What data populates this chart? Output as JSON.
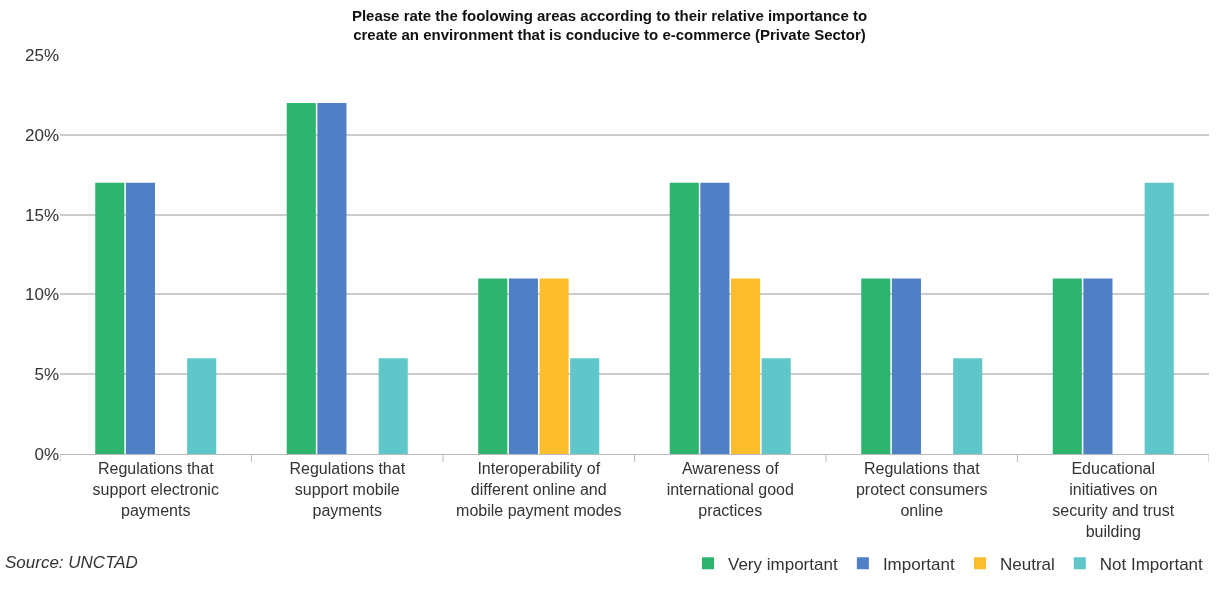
{
  "chart_data": {
    "type": "bar",
    "title": "Please rate the foolowing areas according to their relative importance to create an environment that is conducive to e-commerce (Private Sector)",
    "categories": [
      "Regulations that support electronic payments",
      "Regulations that support mobile payments",
      "Interoperability of different online and mobile payment modes",
      "Awareness of international good practices",
      "Regulations that protect consumers online",
      "Educational initiatives on security and trust building"
    ],
    "series": [
      {
        "name": "Very important",
        "color": "#2db46e",
        "values": [
          17,
          22,
          11,
          17,
          11,
          11
        ]
      },
      {
        "name": "Important",
        "color": "#4f7fc4",
        "values": [
          17,
          22,
          11,
          17,
          11,
          11
        ]
      },
      {
        "name": "Neutral",
        "color": "#fbbd2c",
        "values": [
          0,
          0,
          11,
          11,
          0,
          0
        ]
      },
      {
        "name": "Not Important",
        "color": "#5fc6c9",
        "values": [
          6,
          6,
          6,
          6,
          6,
          17
        ]
      }
    ],
    "ylim": [
      0,
      25
    ],
    "yticks": [
      {
        "value": 0,
        "label": "0%"
      },
      {
        "value": 5,
        "label": "5%"
      },
      {
        "value": 10,
        "label": "10%"
      },
      {
        "value": 15,
        "label": "15%"
      },
      {
        "value": 20,
        "label": "20%"
      },
      {
        "value": 25,
        "label": "25%"
      }
    ],
    "grid": "y",
    "legend": "bottom right",
    "annotations": [
      "Source: UNCTAD"
    ]
  }
}
